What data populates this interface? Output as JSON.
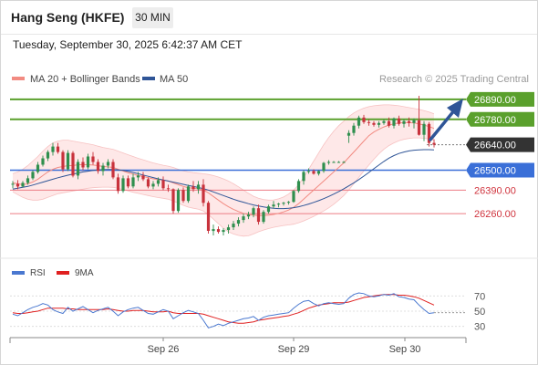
{
  "header": {
    "title": "Hang Seng (HKFE)",
    "interval": "30 MIN",
    "datetime": "Tuesday, September 30, 2025 6:42:37 AM CET"
  },
  "legend": {
    "ma20": "MA 20 + Bollinger Bands",
    "ma50": "MA 50",
    "ma20_color": "#f28b82",
    "ma50_color": "#2f5597",
    "credit": "Research © 2025 Trading Central"
  },
  "rsi_legend": {
    "rsi": "RSI",
    "ma9": "9MA",
    "rsi_color": "#4a78d0",
    "ma9_color": "#e02020"
  },
  "colors": {
    "resistance": "#5aa02c",
    "pivot": "#3a6fd8",
    "support": "#ec7c85",
    "last": "#333333",
    "bull": "#2f8f4e",
    "bear": "#c8323c",
    "band": "#fde0e0",
    "arrow": "#2f5597"
  },
  "chart_data": [
    {
      "type": "candlestick",
      "title": "",
      "y_range": [
        26120,
        26960
      ],
      "levels": [
        {
          "value": 26890,
          "label": "26890.00",
          "kind": "resistance"
        },
        {
          "value": 26780,
          "label": "26780.00",
          "kind": "resistance"
        },
        {
          "value": 26640,
          "label": "26640.00",
          "kind": "last"
        },
        {
          "value": 26500,
          "label": "26500.00",
          "kind": "pivot"
        },
        {
          "value": 26390,
          "label": "26390.00",
          "kind": "support"
        },
        {
          "value": 26260,
          "label": "26260.00",
          "kind": "support"
        }
      ],
      "x_ticks": [
        "Sep 26",
        "Sep 29",
        "Sep 30"
      ],
      "candles": [
        [
          26420,
          26440,
          26400,
          26425
        ],
        [
          26425,
          26445,
          26395,
          26410
        ],
        [
          26410,
          26440,
          26405,
          26430
        ],
        [
          26430,
          26470,
          26420,
          26455
        ],
        [
          26455,
          26500,
          26445,
          26490
        ],
        [
          26490,
          26545,
          26480,
          26530
        ],
        [
          26530,
          26580,
          26520,
          26565
        ],
        [
          26565,
          26610,
          26550,
          26600
        ],
        [
          26600,
          26650,
          26580,
          26630
        ],
        [
          26630,
          26650,
          26590,
          26600
        ],
        [
          26600,
          26610,
          26490,
          26505
        ],
        [
          26505,
          26610,
          26495,
          26595
        ],
        [
          26595,
          26605,
          26460,
          26470
        ],
        [
          26470,
          26560,
          26450,
          26545
        ],
        [
          26545,
          26570,
          26500,
          26515
        ],
        [
          26515,
          26590,
          26505,
          26575
        ],
        [
          26575,
          26600,
          26530,
          26545
        ],
        [
          26545,
          26560,
          26480,
          26495
        ],
        [
          26495,
          26540,
          26470,
          26525
        ],
        [
          26525,
          26560,
          26510,
          26545
        ],
        [
          26545,
          26560,
          26450,
          26460
        ],
        [
          26460,
          26480,
          26370,
          26385
        ],
        [
          26385,
          26470,
          26375,
          26455
        ],
        [
          26455,
          26470,
          26400,
          26410
        ],
        [
          26410,
          26480,
          26400,
          26460
        ],
        [
          26460,
          26490,
          26440,
          26470
        ],
        [
          26470,
          26490,
          26440,
          26450
        ],
        [
          26450,
          26460,
          26400,
          26410
        ],
        [
          26410,
          26440,
          26395,
          26425
        ],
        [
          26425,
          26460,
          26410,
          26445
        ],
        [
          26445,
          26465,
          26390,
          26400
        ],
        [
          26400,
          26420,
          26380,
          26395
        ],
        [
          26395,
          26400,
          26260,
          26275
        ],
        [
          26275,
          26400,
          26265,
          26390
        ],
        [
          26390,
          26405,
          26320,
          26330
        ],
        [
          26330,
          26420,
          26320,
          26410
        ],
        [
          26410,
          26440,
          26380,
          26395
        ],
        [
          26395,
          26440,
          26370,
          26420
        ],
        [
          26420,
          26450,
          26300,
          26320
        ],
        [
          26320,
          26330,
          26150,
          26165
        ],
        [
          26165,
          26200,
          26140,
          26175
        ],
        [
          26175,
          26190,
          26150,
          26160
        ],
        [
          26160,
          26180,
          26140,
          26170
        ],
        [
          26170,
          26200,
          26150,
          26185
        ],
        [
          26185,
          26220,
          26170,
          26205
        ],
        [
          26205,
          26240,
          26190,
          26225
        ],
        [
          26225,
          26260,
          26210,
          26245
        ],
        [
          26245,
          26270,
          26230,
          26255
        ],
        [
          26255,
          26300,
          26240,
          26290
        ],
        [
          26290,
          26310,
          26200,
          26215
        ],
        [
          26215,
          26280,
          26205,
          26270
        ],
        [
          26270,
          26310,
          26260,
          26300
        ],
        [
          26300,
          26330,
          26290,
          26310
        ],
        [
          26310,
          26320,
          26295,
          26315
        ],
        [
          26315,
          26325,
          26305,
          26320
        ],
        [
          26320,
          26330,
          26310,
          26325
        ],
        [
          26325,
          26390,
          26320,
          26385
        ],
        [
          26385,
          26450,
          26375,
          26440
        ],
        [
          26440,
          26500,
          26420,
          26490
        ],
        [
          26490,
          26510,
          26480,
          26495
        ],
        [
          26495,
          26505,
          26475,
          26480
        ],
        [
          26480,
          26500,
          26470,
          26495
        ],
        [
          26495,
          26545,
          26485,
          26540
        ],
        [
          26540,
          26555,
          26530,
          26545
        ],
        [
          26545,
          26550,
          26540,
          26545
        ],
        [
          26545,
          26550,
          26540,
          26545
        ],
        [
          26545,
          26550,
          26540,
          26545
        ],
        [
          26690,
          26720,
          26650,
          26705
        ],
        [
          26705,
          26760,
          26690,
          26745
        ],
        [
          26745,
          26800,
          26730,
          26790
        ],
        [
          26790,
          26805,
          26755,
          26765
        ],
        [
          26765,
          26780,
          26745,
          26760
        ],
        [
          26760,
          26770,
          26740,
          26750
        ],
        [
          26750,
          26770,
          26735,
          26760
        ],
        [
          26760,
          26780,
          26750,
          26770
        ],
        [
          26770,
          26790,
          26735,
          26745
        ],
        [
          26745,
          26790,
          26730,
          26785
        ],
        [
          26785,
          26800,
          26745,
          26755
        ],
        [
          26755,
          26780,
          26735,
          26770
        ],
        [
          26770,
          26790,
          26740,
          26760
        ],
        [
          26760,
          26785,
          26730,
          26775
        ],
        [
          26775,
          26910,
          26690,
          26695
        ],
        [
          26695,
          26770,
          26660,
          26755
        ],
        [
          26755,
          26765,
          26630,
          26650
        ],
        [
          26650,
          26670,
          26625,
          26640
        ]
      ],
      "ma20": [
        26430,
        26425,
        26420,
        26425,
        26435,
        26450,
        26470,
        26490,
        26505,
        26515,
        26520,
        26525,
        26525,
        26530,
        26530,
        26530,
        26528,
        26525,
        26520,
        26518,
        26515,
        26505,
        26495,
        26485,
        26478,
        26470,
        26465,
        26458,
        26452,
        26448,
        26445,
        26440,
        26430,
        26420,
        26410,
        26403,
        26400,
        26398,
        26390,
        26375,
        26355,
        26335,
        26315,
        26298,
        26284,
        26272,
        26262,
        26255,
        26252,
        26250,
        26250,
        26252,
        26256,
        26262,
        26270,
        26280,
        26295,
        26315,
        26340,
        26365,
        26390,
        26415,
        26440,
        26465,
        26490,
        26515,
        26540,
        26570,
        26600,
        26630,
        26660,
        26690,
        26710,
        26725,
        26738,
        26748,
        26755,
        26760,
        26762,
        26762,
        26760,
        26755,
        26748,
        26740,
        26730
      ],
      "bb_upper": [
        26480,
        26490,
        26505,
        26525,
        26550,
        26575,
        26605,
        26630,
        26650,
        26660,
        26665,
        26665,
        26660,
        26655,
        26650,
        26645,
        26640,
        26632,
        26625,
        26620,
        26615,
        26605,
        26595,
        26585,
        26575,
        26565,
        26557,
        26548,
        26540,
        26533,
        26527,
        26522,
        26515,
        26505,
        26496,
        26490,
        26486,
        26483,
        26480,
        26476,
        26470,
        26462,
        26452,
        26440,
        26425,
        26408,
        26390,
        26372,
        26356,
        26345,
        26338,
        26335,
        26336,
        26342,
        26352,
        26368,
        26390,
        26420,
        26460,
        26505,
        26550,
        26595,
        26640,
        26680,
        26715,
        26745,
        26770,
        26795,
        26815,
        26830,
        26842,
        26850,
        26855,
        26858,
        26860,
        26860,
        26858,
        26855,
        26850,
        26845,
        26840,
        26835,
        26828,
        26820,
        26810
      ],
      "bb_lower": [
        26380,
        26365,
        26350,
        26340,
        26335,
        26335,
        26340,
        26350,
        26360,
        26370,
        26375,
        26380,
        26385,
        26390,
        26395,
        26400,
        26403,
        26405,
        26406,
        26406,
        26405,
        26400,
        26393,
        26385,
        26378,
        26372,
        26366,
        26360,
        26354,
        26349,
        26345,
        26340,
        26330,
        26318,
        26306,
        26296,
        26290,
        26285,
        26275,
        26255,
        26230,
        26205,
        26180,
        26160,
        26148,
        26140,
        26136,
        26138,
        26148,
        26160,
        26170,
        26178,
        26185,
        26190,
        26195,
        26198,
        26202,
        26210,
        26220,
        26232,
        26245,
        26260,
        26275,
        26292,
        26312,
        26335,
        26360,
        26390,
        26425,
        26460,
        26495,
        26528,
        26560,
        26590,
        26615,
        26635,
        26650,
        26662,
        26670,
        26675,
        26678,
        26678,
        26676,
        26672,
        26665
      ],
      "ma50": [
        26395,
        26400,
        26405,
        26410,
        26418,
        26426,
        26434,
        26442,
        26450,
        26458,
        26465,
        26472,
        26478,
        26484,
        26490,
        26494,
        26498,
        26501,
        26503,
        26504,
        26504,
        26502,
        26498,
        26493,
        26487,
        26480,
        26473,
        26466,
        26459,
        26452,
        26446,
        26440,
        26434,
        26428,
        26422,
        26416,
        26410,
        26404,
        26398,
        26390,
        26380,
        26370,
        26360,
        26350,
        26340,
        26331,
        26323,
        26315,
        26308,
        26302,
        26297,
        26293,
        26290,
        26288,
        26288,
        26290,
        26293,
        26298,
        26305,
        26313,
        26322,
        26332,
        26343,
        26355,
        26368,
        26382,
        26397,
        26413,
        26430,
        26448,
        26467,
        26487,
        26508,
        26528,
        26548,
        26566,
        26580,
        26592,
        26600,
        26606,
        26610,
        26612,
        26613,
        26613,
        26612
      ]
    },
    {
      "type": "line",
      "title": "RSI",
      "y_range": [
        20,
        80
      ],
      "y_ticks": [
        70,
        50,
        30
      ],
      "series": [
        {
          "name": "RSI",
          "values": [
            46,
            44,
            48,
            52,
            55,
            57,
            60,
            58,
            52,
            49,
            47,
            55,
            50,
            53,
            56,
            52,
            48,
            51,
            53,
            55,
            50,
            44,
            49,
            52,
            54,
            55,
            51,
            47,
            46,
            49,
            52,
            50,
            40,
            44,
            48,
            51,
            49,
            47,
            38,
            28,
            30,
            33,
            31,
            34,
            36,
            38,
            40,
            41,
            43,
            38,
            42,
            44,
            45,
            46,
            47,
            48,
            54,
            59,
            63,
            64,
            60,
            57,
            60,
            61,
            60,
            59,
            60,
            67,
            72,
            74,
            73,
            70,
            69,
            70,
            72,
            71,
            73,
            69,
            68,
            66,
            65,
            58,
            52,
            47,
            48
          ]
        },
        {
          "name": "9MA",
          "values": [
            48,
            47,
            47,
            48,
            49,
            50,
            52,
            54,
            54,
            54,
            54,
            53,
            53,
            52,
            52,
            52,
            52,
            52,
            52,
            53,
            52,
            51,
            50,
            50,
            51,
            51,
            51,
            50,
            49,
            49,
            49,
            50,
            48,
            47,
            47,
            47,
            47,
            47,
            46,
            44,
            42,
            40,
            38,
            36,
            35,
            34,
            34,
            35,
            36,
            38,
            39,
            40,
            41,
            42,
            43,
            44,
            46,
            48,
            51,
            54,
            56,
            58,
            59,
            60,
            61,
            61,
            61,
            62,
            64,
            66,
            68,
            69,
            70,
            71,
            72,
            72,
            72,
            71,
            71,
            70,
            69,
            67,
            64,
            61,
            58
          ]
        }
      ]
    }
  ]
}
